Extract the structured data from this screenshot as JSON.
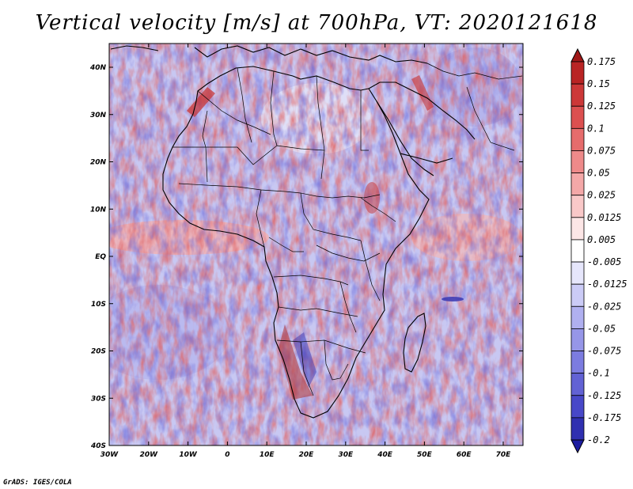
{
  "title": "Vertical velocity [m/s] at 700hPa, VT: 2020121618",
  "credit": "GrADS: IGES/COLA",
  "map": {
    "variable": "Vertical velocity",
    "units": "m/s",
    "level": "700hPa",
    "valid_time": "2020121618",
    "lon_ticks": [
      "30W",
      "20W",
      "10W",
      "0",
      "10E",
      "20E",
      "30E",
      "40E",
      "50E",
      "60E",
      "70E"
    ],
    "lat_ticks": [
      "40N",
      "30N",
      "20N",
      "10N",
      "EQ",
      "10S",
      "20S",
      "30S",
      "40S"
    ]
  },
  "colorbar": {
    "labels": [
      "0.175",
      "0.15",
      "0.125",
      "0.1",
      "0.075",
      "0.05",
      "0.025",
      "0.0125",
      "0.005",
      "-0.005",
      "-0.0125",
      "-0.025",
      "-0.05",
      "-0.075",
      "-0.1",
      "-0.125",
      "-0.175",
      "-0.2"
    ],
    "colors": [
      "#a01818",
      "#b92424",
      "#cc3838",
      "#dc5050",
      "#e66c6c",
      "#ee8a8a",
      "#f4a8a8",
      "#f9c8c8",
      "#fce6e6",
      "#ffffff",
      "#e6e6fb",
      "#cbcbf6",
      "#b0b0f0",
      "#9696e8",
      "#7c7ce0",
      "#6262d4",
      "#4848c8",
      "#3030b0",
      "#1c1ca0"
    ]
  }
}
